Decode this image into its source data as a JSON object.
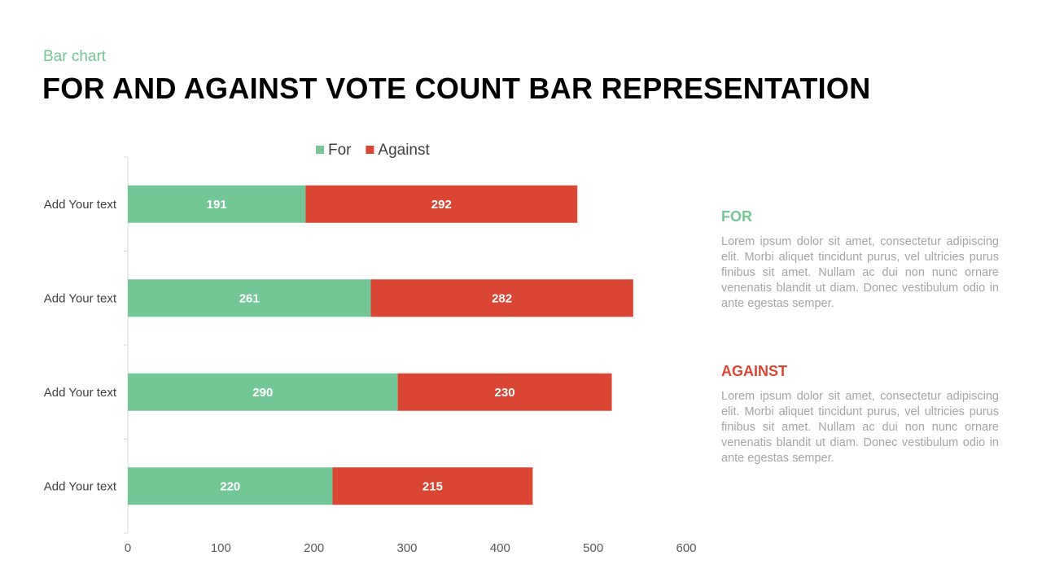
{
  "header": {
    "subtitle": "Bar chart",
    "title": "FOR AND AGAINST VOTE COUNT BAR REPRESENTATION"
  },
  "chart_data": {
    "type": "bar",
    "orientation": "horizontal",
    "stacked": true,
    "categories": [
      "Add Your text",
      "Add Your text",
      "Add Your text",
      "Add Your text"
    ],
    "series": [
      {
        "name": "For",
        "color": "#73c797",
        "values": [
          191,
          261,
          290,
          220
        ]
      },
      {
        "name": "Against",
        "color": "#db4634",
        "values": [
          292,
          282,
          230,
          215
        ]
      }
    ],
    "xlim": [
      0,
      600
    ],
    "xticks": [
      0,
      100,
      200,
      300,
      400,
      500,
      600
    ],
    "grid": false,
    "legend": "top",
    "data_labels": true
  },
  "side": {
    "for": {
      "heading": "FOR",
      "body": "Lorem ipsum dolor sit amet, consectetur adipiscing elit. Morbi aliquet tincidunt purus, vel ultricies purus finibus sit amet. Nullam ac dui non nunc ornare venenatis blandit ut diam. Donec vestibulum odio in ante egestas semper."
    },
    "against": {
      "heading": "AGAINST",
      "body": "Lorem ipsum dolor sit amet, consectetur adipiscing elit. Morbi aliquet tincidunt purus, vel ultricies purus finibus sit amet. Nullam ac dui non nunc ornare venenatis blandit ut diam. Donec vestibulum odio in ante egestas semper."
    }
  }
}
